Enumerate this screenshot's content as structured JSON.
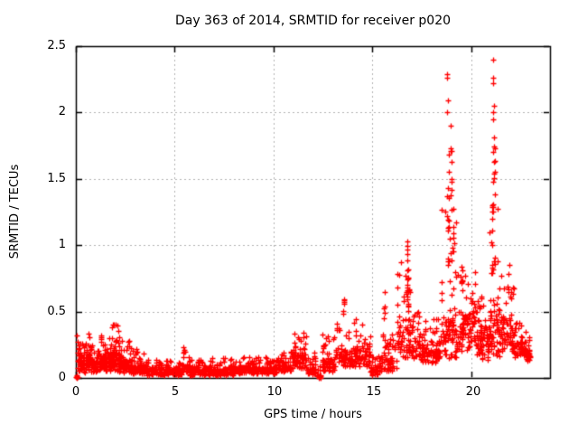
{
  "chart_data": {
    "type": "scatter",
    "title": "Day 363 of 2014, SRMTID for receiver p020",
    "xlabel": "GPS time / hours",
    "ylabel": "SRMTID / TECUs",
    "xlim": [
      0,
      24
    ],
    "ylim": [
      0,
      2.5
    ],
    "xticks": [
      0,
      5,
      10,
      15,
      20
    ],
    "xtick_labels": [
      "0",
      "5",
      "10",
      "15",
      "20"
    ],
    "yticks": [
      0,
      0.5,
      1,
      1.5,
      2,
      2.5
    ],
    "ytick_labels": [
      "0",
      "0.5",
      "1",
      "1.5",
      "2",
      "2.5"
    ],
    "grid": {
      "x_at": [
        5,
        10,
        15,
        20
      ],
      "y_at": [
        0.5,
        1,
        1.5,
        2
      ],
      "color": "#b0b0b0",
      "dash": [
        2,
        3
      ]
    },
    "legend": "none",
    "axis_color": "#000000",
    "marker": {
      "shape": "plus",
      "color": "#ff0000",
      "size": 6
    },
    "seed": 1363,
    "band_segment_fields": [
      "x_start",
      "x_end",
      "count",
      "y_min",
      "y_typ",
      "y_max"
    ],
    "band_segments": [
      [
        0.05,
        0.45,
        60,
        0.04,
        0.16,
        0.28
      ],
      [
        0.45,
        0.75,
        50,
        0.05,
        0.18,
        0.37
      ],
      [
        0.75,
        1.25,
        70,
        0.04,
        0.13,
        0.26
      ],
      [
        1.25,
        1.8,
        80,
        0.05,
        0.16,
        0.33
      ],
      [
        1.8,
        2.25,
        70,
        0.05,
        0.19,
        0.41
      ],
      [
        2.25,
        2.8,
        70,
        0.04,
        0.13,
        0.3
      ],
      [
        2.8,
        3.6,
        80,
        0.03,
        0.09,
        0.23
      ],
      [
        3.6,
        5.4,
        160,
        0.02,
        0.07,
        0.14
      ],
      [
        5.4,
        5.75,
        30,
        0.03,
        0.1,
        0.27
      ],
      [
        5.75,
        8.2,
        220,
        0.02,
        0.07,
        0.15
      ],
      [
        8.2,
        10.2,
        180,
        0.03,
        0.08,
        0.16
      ],
      [
        10.2,
        10.9,
        60,
        0.04,
        0.1,
        0.2
      ],
      [
        10.9,
        11.7,
        80,
        0.06,
        0.18,
        0.36
      ],
      [
        11.7,
        12.15,
        40,
        0.02,
        0.08,
        0.2
      ],
      [
        12.18,
        12.42,
        20,
        0.0,
        0.02,
        0.1
      ],
      [
        12.45,
        13.1,
        60,
        0.05,
        0.15,
        0.33
      ],
      [
        13.1,
        14.2,
        90,
        0.08,
        0.2,
        0.45
      ],
      [
        14.2,
        14.9,
        60,
        0.08,
        0.2,
        0.45
      ],
      [
        14.9,
        15.35,
        40,
        0.02,
        0.08,
        0.18
      ],
      [
        15.35,
        16.25,
        70,
        0.05,
        0.15,
        0.33
      ],
      [
        16.25,
        17.05,
        70,
        0.15,
        0.4,
        0.95
      ],
      [
        17.05,
        17.65,
        50,
        0.12,
        0.25,
        0.52
      ],
      [
        17.65,
        18.45,
        70,
        0.1,
        0.22,
        0.45
      ],
      [
        18.45,
        19.35,
        90,
        0.15,
        0.45,
        1.3
      ],
      [
        19.35,
        20.3,
        90,
        0.2,
        0.45,
        0.8
      ],
      [
        20.3,
        20.9,
        70,
        0.12,
        0.35,
        0.65
      ],
      [
        20.9,
        21.45,
        70,
        0.15,
        0.5,
        1.3
      ],
      [
        21.45,
        22.15,
        70,
        0.2,
        0.45,
        0.88
      ],
      [
        22.15,
        22.8,
        70,
        0.15,
        0.27,
        0.42
      ],
      [
        22.8,
        23.05,
        25,
        0.12,
        0.2,
        0.32
      ]
    ],
    "spike_fields": [
      "x",
      "count",
      "y_min",
      "y_max"
    ],
    "spikes": [
      [
        13.52,
        6,
        0.45,
        0.62
      ],
      [
        15.62,
        5,
        0.42,
        0.65
      ],
      [
        16.78,
        14,
        0.5,
        1.04
      ],
      [
        16.86,
        8,
        0.4,
        0.8
      ],
      [
        18.85,
        12,
        0.8,
        1.45
      ],
      [
        19.0,
        8,
        1.3,
        1.75
      ],
      [
        19.06,
        6,
        0.9,
        1.3
      ],
      [
        19.55,
        6,
        0.7,
        0.95
      ],
      [
        21.1,
        10,
        0.8,
        1.35
      ],
      [
        21.16,
        8,
        1.3,
        1.8
      ]
    ],
    "outliers": [
      [
        0.05,
        0.32
      ],
      [
        0.02,
        0.005
      ],
      [
        0.04,
        0.01
      ],
      [
        0.03,
        0.02
      ],
      [
        0.06,
        0.015
      ],
      [
        0.05,
        0.0
      ],
      [
        0.08,
        0.01
      ],
      [
        12.3,
        0.005
      ],
      [
        12.32,
        0.01
      ],
      [
        12.28,
        0.015
      ],
      [
        12.31,
        0.0
      ],
      [
        18.78,
        2.29
      ],
      [
        18.8,
        2.26
      ],
      [
        18.83,
        2.09
      ],
      [
        18.81,
        2.0
      ],
      [
        18.95,
        1.9
      ],
      [
        18.9,
        1.68
      ],
      [
        18.87,
        1.55
      ],
      [
        19.0,
        1.48
      ],
      [
        21.1,
        2.4
      ],
      [
        21.12,
        2.26
      ],
      [
        21.11,
        2.22
      ],
      [
        21.15,
        2.05
      ],
      [
        21.13,
        2.0
      ],
      [
        21.1,
        1.95
      ],
      [
        21.18,
        1.81
      ],
      [
        21.2,
        1.73
      ],
      [
        21.17,
        1.63
      ],
      [
        21.11,
        1.48
      ]
    ]
  }
}
